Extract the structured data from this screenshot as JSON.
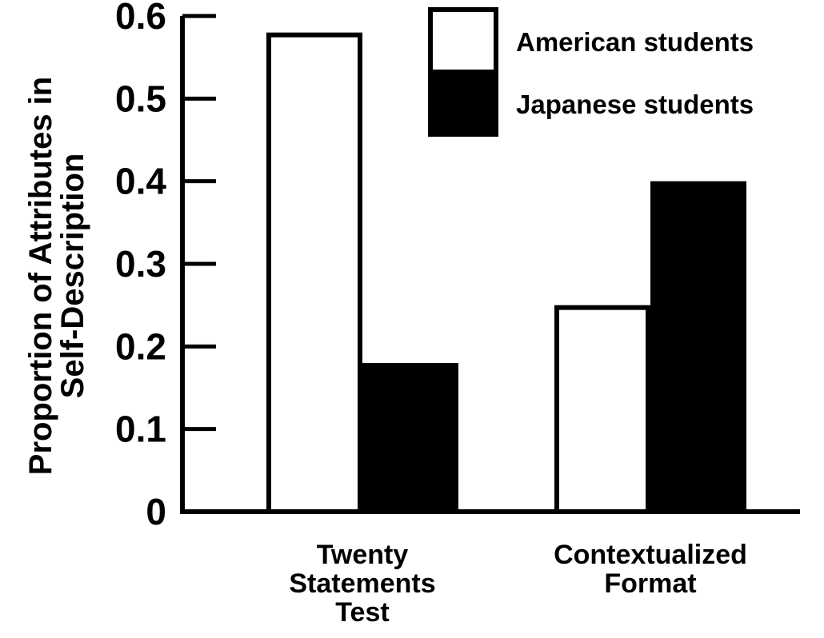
{
  "chart_data": {
    "type": "bar",
    "categories": [
      [
        "Twenty",
        "Statements",
        "Test"
      ],
      [
        "Contextualized",
        "Format"
      ]
    ],
    "series": [
      {
        "name": "American students",
        "values": [
          0.58,
          0.25
        ],
        "color": "#ffffff"
      },
      {
        "name": "Japanese students",
        "values": [
          0.18,
          0.4
        ],
        "color": "#000000"
      }
    ],
    "ylabel": [
      "Proportion of Attributes in",
      "Self-Description"
    ],
    "ylim": [
      0,
      0.6
    ],
    "yticks": [
      "0",
      "0.1",
      "0.2",
      "0.3",
      "0.4",
      "0.5",
      "0.6"
    ],
    "legend": "top-right",
    "grid": false
  }
}
